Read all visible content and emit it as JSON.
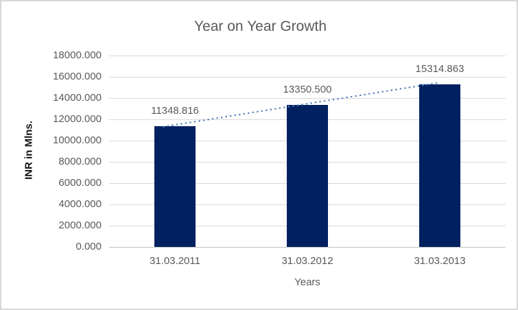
{
  "chart_data": {
    "type": "bar",
    "title": "Year on Year Growth",
    "xlabel": "Years",
    "ylabel": "INR in Mlns.",
    "categories": [
      "31.03.2011",
      "31.03.2012",
      "31.03.2013"
    ],
    "values": [
      11348.816,
      13350.5,
      15314.863
    ],
    "data_labels": [
      "11348.816",
      "13350.500",
      "15314.863"
    ],
    "ylim": [
      0,
      18000
    ],
    "ytick_labels": [
      "18000.000",
      "16000.000",
      "14000.000",
      "12000.000",
      "10000.000",
      "8000.000",
      "6000.000",
      "4000.000",
      "2000.000",
      "0.000"
    ],
    "grid": "horizontal",
    "legend": "none",
    "trendline": {
      "type": "linear",
      "style": "dotted"
    },
    "colors": {
      "bar": "#002060",
      "trendline": "#4f81bd",
      "gridline": "#d9d9d9",
      "axis_line": "#bfbfbf",
      "text_gray": "#595959",
      "y_title_text": "#111111"
    }
  }
}
